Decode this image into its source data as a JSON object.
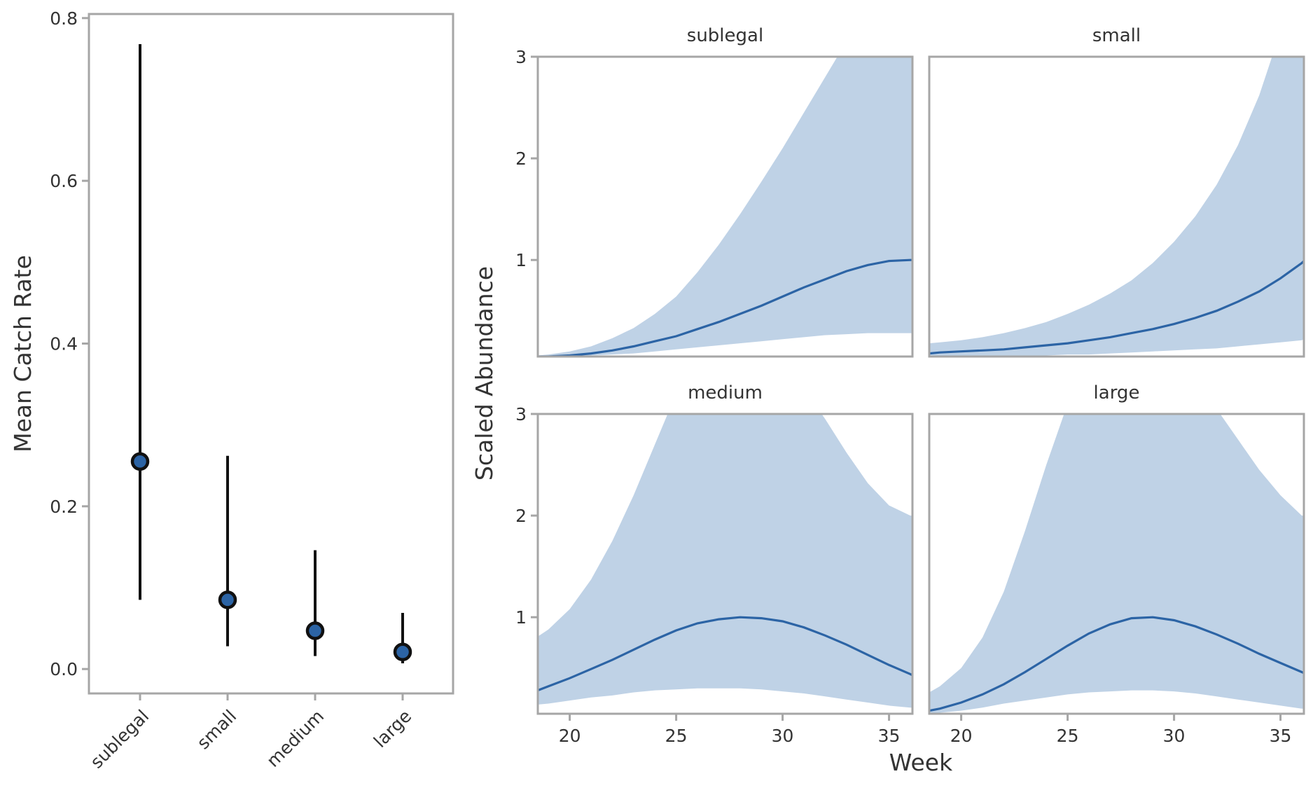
{
  "colors": {
    "line": "#2c64a5",
    "band": "#bfd2e6",
    "point_fill": "#2c64a5",
    "point_edge": "#111111",
    "errorbar": "#111111",
    "frame": "#a6a6a6",
    "text": "#333333"
  },
  "labels": {
    "left_ylabel": "Mean Catch Rate",
    "right_ylabel": "Scaled Abundance",
    "right_xlabel": "Week"
  },
  "chart_data": [
    {
      "type": "scatter",
      "subtype": "pointrange",
      "title": "",
      "xlabel": "",
      "ylabel": "Mean Catch Rate",
      "categories": [
        "sublegal",
        "small",
        "medium",
        "large"
      ],
      "values": [
        0.255,
        0.085,
        0.047,
        0.021
      ],
      "lower": [
        0.085,
        0.028,
        0.016,
        0.007
      ],
      "upper": [
        0.768,
        0.262,
        0.146,
        0.069
      ],
      "ylim": [
        -0.03,
        0.805
      ],
      "yticks": [
        0.0,
        0.2,
        0.4,
        0.6,
        0.8
      ],
      "ytick_labels": [
        "0.0",
        "0.2",
        "0.4",
        "0.6",
        "0.8"
      ],
      "grid": false
    },
    {
      "type": "line",
      "subtype": "faceted line with ribbon",
      "xlabel": "Week",
      "ylabel": "Scaled Abundance",
      "xlim": [
        18.5,
        36.1
      ],
      "ylim": [
        0.05,
        3
      ],
      "xticks": [
        20,
        25,
        30,
        35
      ],
      "xtick_labels": [
        "20",
        "25",
        "30",
        "35"
      ],
      "yticks": [
        1,
        2,
        3
      ],
      "ytick_labels": [
        "1",
        "2",
        "3"
      ],
      "grid": false,
      "x": [
        18.5,
        19,
        20,
        21,
        22,
        23,
        24,
        25,
        26,
        27,
        28,
        29,
        30,
        31,
        32,
        33,
        34,
        35,
        36,
        36.1
      ],
      "panels": [
        {
          "title": "sublegal",
          "mean": [
            0.05,
            0.05,
            0.06,
            0.08,
            0.11,
            0.15,
            0.2,
            0.25,
            0.32,
            0.39,
            0.47,
            0.55,
            0.64,
            0.73,
            0.81,
            0.89,
            0.95,
            0.99,
            1.0,
            1.0
          ],
          "lower": [
            0.05,
            0.05,
            0.05,
            0.06,
            0.07,
            0.08,
            0.1,
            0.12,
            0.14,
            0.16,
            0.18,
            0.2,
            0.22,
            0.24,
            0.26,
            0.27,
            0.28,
            0.28,
            0.28,
            0.28
          ],
          "upper": [
            0.06,
            0.07,
            0.1,
            0.15,
            0.23,
            0.33,
            0.47,
            0.64,
            0.88,
            1.15,
            1.45,
            1.77,
            2.1,
            2.45,
            2.8,
            3.15,
            3.5,
            3.8,
            4.1,
            4.1
          ]
        },
        {
          "title": "small",
          "mean": [
            0.08,
            0.09,
            0.1,
            0.11,
            0.12,
            0.14,
            0.16,
            0.18,
            0.21,
            0.24,
            0.28,
            0.32,
            0.37,
            0.43,
            0.5,
            0.59,
            0.69,
            0.82,
            0.97,
            0.99
          ],
          "lower": [
            0.05,
            0.05,
            0.05,
            0.05,
            0.05,
            0.06,
            0.06,
            0.07,
            0.07,
            0.08,
            0.09,
            0.1,
            0.11,
            0.12,
            0.13,
            0.15,
            0.17,
            0.19,
            0.21,
            0.22
          ],
          "upper": [
            0.18,
            0.19,
            0.21,
            0.24,
            0.28,
            0.33,
            0.39,
            0.47,
            0.56,
            0.67,
            0.8,
            0.97,
            1.18,
            1.43,
            1.74,
            2.13,
            2.62,
            3.25,
            4.0,
            4.1
          ]
        },
        {
          "title": "medium",
          "mean": [
            0.28,
            0.32,
            0.4,
            0.49,
            0.58,
            0.68,
            0.78,
            0.87,
            0.94,
            0.98,
            1.0,
            0.99,
            0.96,
            0.9,
            0.82,
            0.73,
            0.63,
            0.53,
            0.44,
            0.43
          ],
          "lower": [
            0.14,
            0.15,
            0.18,
            0.21,
            0.23,
            0.26,
            0.28,
            0.29,
            0.3,
            0.3,
            0.3,
            0.29,
            0.27,
            0.25,
            0.22,
            0.19,
            0.16,
            0.13,
            0.11,
            0.11
          ],
          "upper": [
            0.81,
            0.88,
            1.08,
            1.37,
            1.75,
            2.2,
            2.7,
            3.2,
            3.6,
            3.9,
            4.0,
            3.9,
            3.6,
            3.25,
            2.95,
            2.62,
            2.32,
            2.1,
            2.0,
            2.0
          ]
        },
        {
          "title": "large",
          "mean": [
            0.08,
            0.1,
            0.16,
            0.24,
            0.34,
            0.46,
            0.59,
            0.72,
            0.84,
            0.93,
            0.99,
            1.0,
            0.97,
            0.91,
            0.83,
            0.74,
            0.64,
            0.55,
            0.46,
            0.45
          ],
          "lower": [
            0.05,
            0.06,
            0.08,
            0.11,
            0.15,
            0.18,
            0.21,
            0.24,
            0.26,
            0.27,
            0.28,
            0.28,
            0.27,
            0.25,
            0.22,
            0.19,
            0.16,
            0.13,
            0.1,
            0.1
          ],
          "upper": [
            0.26,
            0.32,
            0.5,
            0.8,
            1.25,
            1.85,
            2.5,
            3.1,
            3.6,
            3.85,
            3.95,
            3.9,
            3.7,
            3.4,
            3.05,
            2.75,
            2.45,
            2.2,
            2.0,
            2.0
          ]
        }
      ]
    }
  ]
}
